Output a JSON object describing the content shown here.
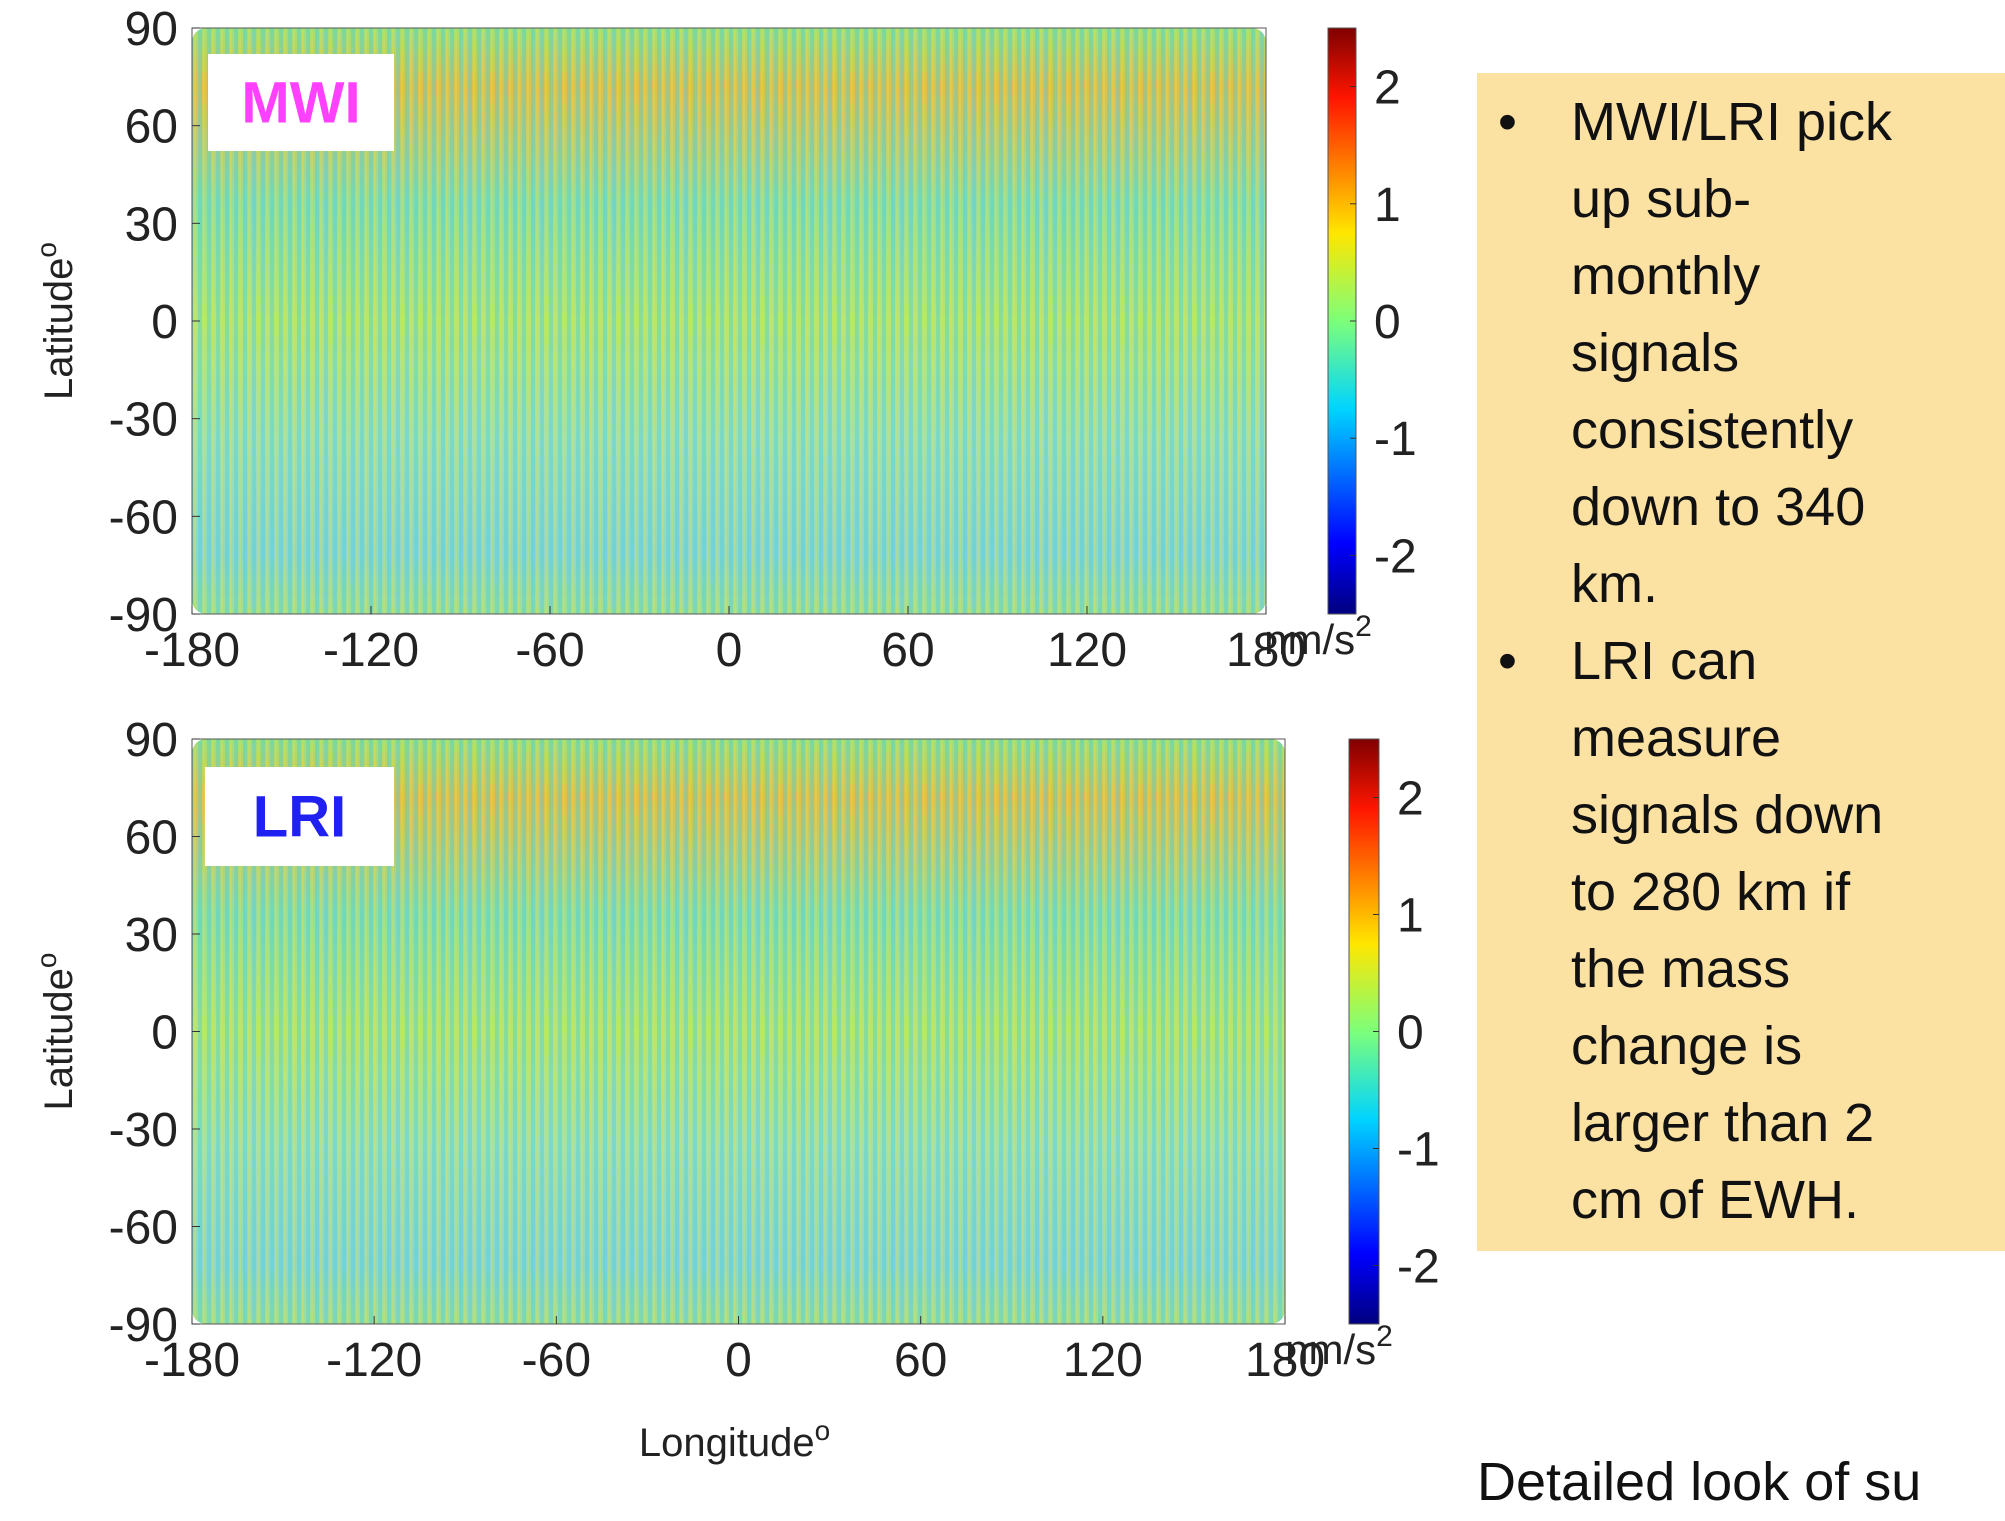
{
  "chart_data": [
    {
      "type": "map",
      "label": "MWI",
      "label_color": "#ff40ff",
      "xlim": [
        -180,
        180
      ],
      "xticks": [
        -180,
        -120,
        -60,
        0,
        60,
        120,
        180
      ],
      "ylim": [
        -90,
        90
      ],
      "yticks": [
        -90,
        -60,
        -30,
        0,
        30,
        60,
        90
      ],
      "ylabel": "Latitude",
      "ylabel_sup": "o",
      "colorbar": {
        "lim": [
          -2.5,
          2.5
        ],
        "ticks": [
          -2,
          -1,
          0,
          1,
          2
        ],
        "unit": "nm/s",
        "unit_sup": "2"
      }
    },
    {
      "type": "map",
      "label": "LRI",
      "label_color": "#2020f0",
      "xlim": [
        -180,
        180
      ],
      "xticks": [
        -180,
        -120,
        -60,
        0,
        60,
        120,
        180
      ],
      "ylim": [
        -90,
        90
      ],
      "yticks": [
        -90,
        -60,
        -30,
        0,
        30,
        60,
        90
      ],
      "ylabel": "Latitude",
      "ylabel_sup": "o",
      "xlabel": "Longitude",
      "xlabel_sup": "o",
      "colorbar": {
        "lim": [
          -2.5,
          2.5
        ],
        "ticks": [
          -2,
          -1,
          0,
          1,
          2
        ],
        "unit": "nm/s",
        "unit_sup": "2"
      }
    }
  ],
  "notes": {
    "bullets": [
      [
        "MWI/LRI pick",
        "up sub-",
        "monthly",
        "signals",
        "consistently",
        "down to 340",
        "km."
      ],
      [
        "LRI can",
        "measure",
        "signals down",
        "to 280 km if",
        "the mass",
        "change is",
        "larger than 2",
        "cm of EWH."
      ]
    ],
    "bullet_mark": "•",
    "footer": "Detailed look of su"
  }
}
